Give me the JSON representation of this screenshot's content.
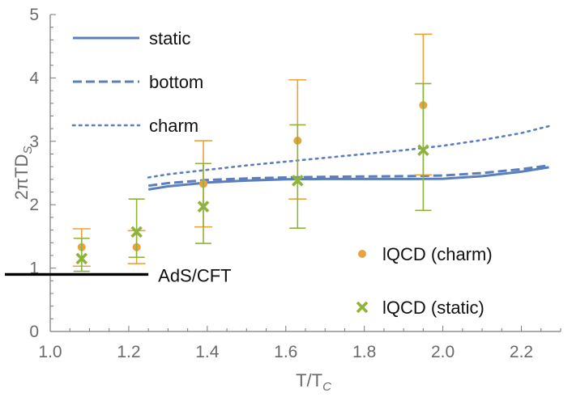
{
  "chart_data": {
    "type": "line",
    "xlabel": "T/T",
    "xlabel_sub": "C",
    "ylabel": "2πTD",
    "ylabel_sub": "S",
    "xlim": [
      1.0,
      2.3
    ],
    "ylim": [
      0,
      5
    ],
    "xticks": [
      1.0,
      1.2,
      1.4,
      1.6,
      1.8,
      2.0,
      2.2
    ],
    "xtick_labels": [
      "1.0",
      "1.2",
      "1.4",
      "1.6",
      "1.8",
      "2.0",
      "2.2"
    ],
    "yticks": [
      0,
      1,
      2,
      3,
      4,
      5
    ],
    "ytick_labels": [
      "0",
      "1",
      "2",
      "3",
      "4",
      "5"
    ],
    "grid": false,
    "legend_position": "top-left",
    "series": [
      {
        "name": "static",
        "style": "solid",
        "color": "#5b7fbd",
        "x": [
          1.25,
          1.3,
          1.4,
          1.5,
          1.6,
          1.7,
          1.8,
          1.9,
          2.0,
          2.1,
          2.2,
          2.27
        ],
        "y": [
          2.24,
          2.29,
          2.35,
          2.38,
          2.4,
          2.405,
          2.405,
          2.405,
          2.41,
          2.45,
          2.52,
          2.59
        ]
      },
      {
        "name": "bottom",
        "style": "dashed",
        "color": "#5b7fbd",
        "x": [
          1.25,
          1.3,
          1.4,
          1.5,
          1.6,
          1.7,
          1.8,
          1.9,
          2.0,
          2.1,
          2.2,
          2.27
        ],
        "y": [
          2.3,
          2.34,
          2.39,
          2.415,
          2.43,
          2.44,
          2.445,
          2.45,
          2.46,
          2.5,
          2.56,
          2.62
        ]
      },
      {
        "name": "charm",
        "style": "dotted",
        "color": "#5b7fbd",
        "x": [
          1.25,
          1.3,
          1.4,
          1.5,
          1.6,
          1.7,
          1.8,
          1.9,
          2.0,
          2.1,
          2.2,
          2.27
        ],
        "y": [
          2.43,
          2.48,
          2.55,
          2.62,
          2.68,
          2.74,
          2.8,
          2.86,
          2.93,
          3.02,
          3.13,
          3.24
        ]
      },
      {
        "name": "lQCD (charm)",
        "type": "scatter",
        "marker": "circle",
        "color": "#e8a33d",
        "x": [
          1.08,
          1.22,
          1.39,
          1.63,
          1.95
        ],
        "y": [
          1.33,
          1.33,
          2.33,
          3.01,
          3.57
        ],
        "y_low": [
          1.03,
          1.07,
          1.65,
          2.09,
          2.47
        ],
        "y_high": [
          1.62,
          1.59,
          3.01,
          3.97,
          4.69
        ]
      },
      {
        "name": "lQCD (static)",
        "type": "scatter",
        "marker": "x",
        "color": "#8db33a",
        "x": [
          1.08,
          1.22,
          1.39,
          1.63,
          1.95
        ],
        "y": [
          1.15,
          1.57,
          1.97,
          2.38,
          2.86
        ],
        "y_low": [
          0.95,
          1.17,
          1.39,
          1.63,
          1.91
        ],
        "y_high": [
          1.47,
          2.09,
          2.65,
          3.26,
          3.91
        ]
      }
    ],
    "annotations": [
      {
        "text": "AdS/CFT",
        "y": 0.9,
        "x_start": 1.0,
        "x_end": 1.25,
        "color": "#000000"
      }
    ]
  }
}
